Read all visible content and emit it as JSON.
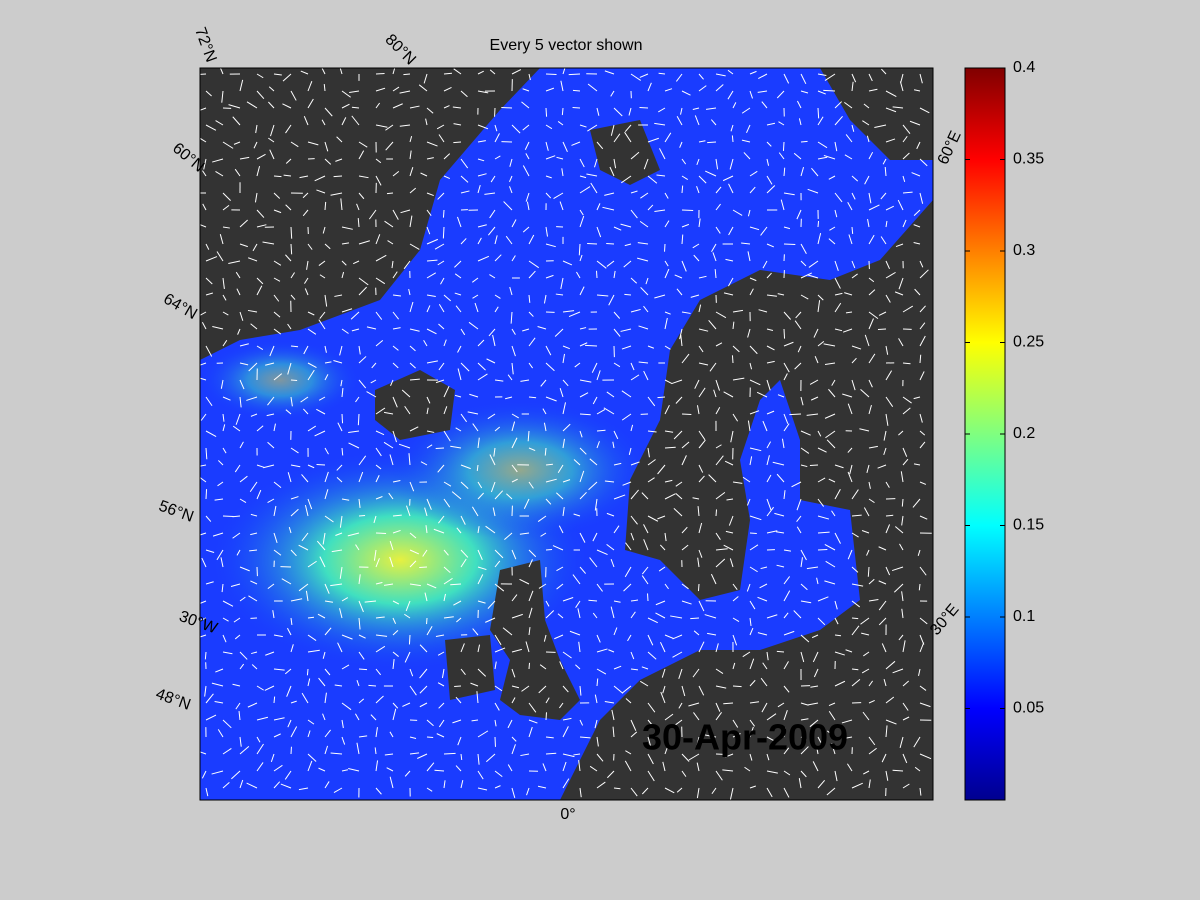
{
  "title": "Every 5 vector shown",
  "date": "30-Apr-2009",
  "graticule_labels": [
    "72°N",
    "80°N",
    "60°E",
    "60°N",
    "64°N",
    "56°N",
    "30°W",
    "48°N",
    "0°",
    "30°E"
  ],
  "colorbar": {
    "ylim": [
      0,
      0.4
    ],
    "yticks": [
      0.05,
      0.1,
      0.15,
      0.2,
      0.25,
      0.3,
      0.35,
      0.4
    ]
  }
}
